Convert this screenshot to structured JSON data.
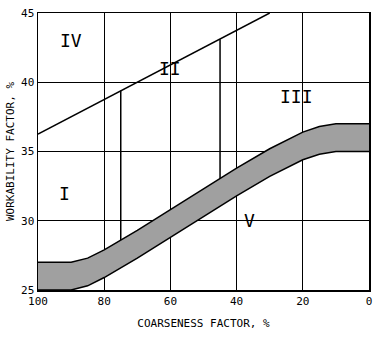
{
  "chart_data": {
    "type": "line",
    "x_label": "COARSENESS FACTOR, %",
    "y_label": "WORKABILITY FACTOR, %",
    "xlim": [
      100,
      0
    ],
    "ylim": [
      25,
      45
    ],
    "xticks": [
      100,
      80,
      60,
      40,
      20,
      0
    ],
    "yticks": [
      25,
      30,
      35,
      40,
      45
    ],
    "grid": true,
    "color": "#000000",
    "series": [
      {
        "type": "line",
        "color": "#000000",
        "x": [
          100,
          30
        ],
        "values": [
          36.25,
          45
        ]
      },
      {
        "type": "line",
        "color": "#000000",
        "x": [
          75,
          75
        ],
        "values": [
          28.6,
          39.4
        ]
      },
      {
        "type": "line",
        "color": "#000000",
        "x": [
          45,
          45
        ],
        "values": [
          33.0,
          43.1
        ]
      },
      {
        "type": "line",
        "color": "#000000",
        "x": [
          100,
          90,
          85,
          80,
          70,
          60,
          50,
          40,
          30,
          20,
          15,
          10,
          0
        ],
        "values": [
          25,
          25,
          25.3,
          25.9,
          27.3,
          28.8,
          30.3,
          31.8,
          33.2,
          34.4,
          34.8,
          35,
          35
        ]
      },
      {
        "type": "area",
        "color": "#a0a0a0",
        "x": [
          100,
          90,
          85,
          80,
          70,
          60,
          50,
          40,
          30,
          20,
          15,
          10,
          0
        ],
        "values": [
          27,
          27,
          27.3,
          27.9,
          29.3,
          30.8,
          32.3,
          33.8,
          35.2,
          36.4,
          36.8,
          37,
          37
        ]
      }
    ],
    "annotations": [
      {
        "text": "I",
        "x": 92,
        "y": 32
      },
      {
        "text": "II",
        "x": 60,
        "y": 41
      },
      {
        "text": "III",
        "x": 22,
        "y": 39
      },
      {
        "text": "IV",
        "x": 90,
        "y": 43
      },
      {
        "text": "V",
        "x": 36,
        "y": 30
      }
    ]
  }
}
